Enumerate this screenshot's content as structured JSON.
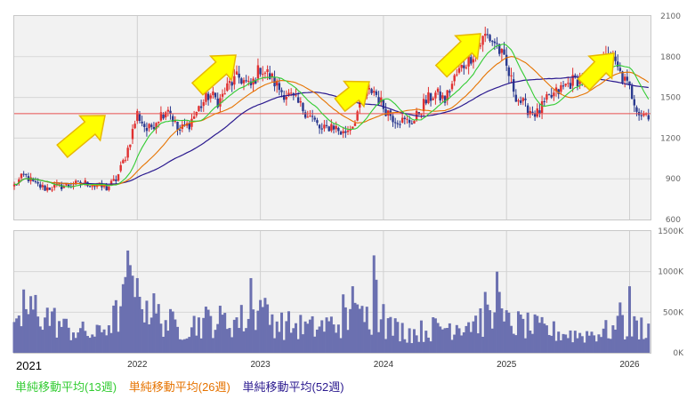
{
  "chart_data": {
    "type": "candlestick",
    "x_axis": {
      "first_label": "2021",
      "labels": [
        "2022",
        "2023",
        "2024",
        "2025",
        "2026"
      ]
    },
    "price_panel": {
      "y_ticks": [
        600,
        900,
        1200,
        1500,
        1800,
        2100
      ],
      "ylim": [
        600,
        2100
      ],
      "reference_line": 1380,
      "series": [
        {
          "name": "単純移動平均(13週)",
          "color": "#33cc33"
        },
        {
          "name": "単純移動平均(26週)",
          "color": "#e67300"
        },
        {
          "name": "単純移動平均(52週)",
          "color": "#2b1a8f"
        }
      ],
      "price_path": [
        [
          "2021-01",
          850
        ],
        [
          "2021-02",
          930
        ],
        [
          "2021-03",
          860
        ],
        [
          "2021-04",
          830
        ],
        [
          "2021-06",
          850
        ],
        [
          "2021-08",
          870
        ],
        [
          "2021-10",
          830
        ],
        [
          "2021-11",
          900
        ],
        [
          "2021-12",
          1100
        ],
        [
          "2022-01",
          1380
        ],
        [
          "2022-02",
          1250
        ],
        [
          "2022-03",
          1350
        ],
        [
          "2022-04",
          1430
        ],
        [
          "2022-05",
          1250
        ],
        [
          "2022-06",
          1300
        ],
        [
          "2022-07",
          1420
        ],
        [
          "2022-08",
          1520
        ],
        [
          "2022-09",
          1470
        ],
        [
          "2022-10",
          1600
        ],
        [
          "2022-11",
          1650
        ],
        [
          "2022-12",
          1570
        ],
        [
          "2023-01",
          1720
        ],
        [
          "2023-02",
          1650
        ],
        [
          "2023-03",
          1550
        ],
        [
          "2023-04",
          1500
        ],
        [
          "2023-05",
          1430
        ],
        [
          "2023-06",
          1350
        ],
        [
          "2023-07",
          1250
        ],
        [
          "2023-08",
          1300
        ],
        [
          "2023-09",
          1230
        ],
        [
          "2023-10",
          1300
        ],
        [
          "2023-11",
          1500
        ],
        [
          "2023-12",
          1560
        ],
        [
          "2024-01",
          1430
        ],
        [
          "2024-02",
          1350
        ],
        [
          "2024-03",
          1320
        ],
        [
          "2024-04",
          1330
        ],
        [
          "2024-05",
          1460
        ],
        [
          "2024-06",
          1530
        ],
        [
          "2024-07",
          1480
        ],
        [
          "2024-08",
          1650
        ],
        [
          "2024-09",
          1760
        ],
        [
          "2024-10",
          1850
        ],
        [
          "2024-11",
          1960
        ],
        [
          "2024-12",
          1900
        ],
        [
          "2025-01",
          1720
        ],
        [
          "2025-02",
          1500
        ],
        [
          "2025-03",
          1420
        ],
        [
          "2025-04",
          1380
        ],
        [
          "2025-05",
          1480
        ],
        [
          "2025-06",
          1540
        ],
        [
          "2025-07",
          1600
        ],
        [
          "2025-08",
          1640
        ],
        [
          "2025-09",
          1640
        ],
        [
          "2025-10",
          1700
        ],
        [
          "2025-11",
          1820
        ],
        [
          "2025-12",
          1680
        ],
        [
          "2026-01",
          1560
        ],
        [
          "2026-02",
          1380
        ]
      ]
    },
    "volume_panel": {
      "y_ticks": [
        0,
        500000,
        1000000,
        1500000
      ],
      "y_tick_labels": [
        "0K",
        "500K",
        "1000K",
        "1500K"
      ],
      "ylim": [
        0,
        1500000
      ],
      "color": "#6b70b0",
      "volume_path": [
        [
          "2021-01",
          250000
        ],
        [
          "2021-03",
          550000
        ],
        [
          "2021-06",
          300000
        ],
        [
          "2021-09",
          220000
        ],
        [
          "2021-11",
          450000
        ],
        [
          "2022-01",
          900000
        ],
        [
          "2022-02",
          600000
        ],
        [
          "2022-03",
          450000
        ],
        [
          "2022-05",
          300000
        ],
        [
          "2022-08",
          400000
        ],
        [
          "2022-10",
          380000
        ],
        [
          "2022-12",
          420000
        ],
        [
          "2023-01",
          500000
        ],
        [
          "2023-03",
          350000
        ],
        [
          "2023-06",
          300000
        ],
        [
          "2023-08",
          350000
        ],
        [
          "2023-10",
          400000
        ],
        [
          "2023-12",
          450000
        ],
        [
          "2024-02",
          300000
        ],
        [
          "2024-04",
          250000
        ],
        [
          "2024-06",
          300000
        ],
        [
          "2024-08",
          350000
        ],
        [
          "2024-10",
          400000
        ],
        [
          "2024-12",
          380000
        ],
        [
          "2025-02",
          350000
        ],
        [
          "2025-04",
          300000
        ],
        [
          "2025-06",
          250000
        ],
        [
          "2025-08",
          220000
        ],
        [
          "2025-10",
          250000
        ],
        [
          "2025-12",
          300000
        ],
        [
          "2026-02",
          320000
        ]
      ],
      "spikes": [
        [
          "2021-02",
          780000
        ],
        [
          "2021-12",
          1260000
        ],
        [
          "2022-01",
          1080000
        ],
        [
          "2022-01",
          920000
        ],
        [
          "2022-12",
          920000
        ],
        [
          "2023-01",
          650000
        ],
        [
          "2023-09",
          720000
        ],
        [
          "2023-10",
          820000
        ],
        [
          "2023-12",
          1200000
        ],
        [
          "2024-01",
          600000
        ],
        [
          "2024-11",
          750000
        ],
        [
          "2024-12",
          1000000
        ],
        [
          "2025-12",
          620000
        ],
        [
          "2026-01",
          820000
        ]
      ]
    }
  }
}
